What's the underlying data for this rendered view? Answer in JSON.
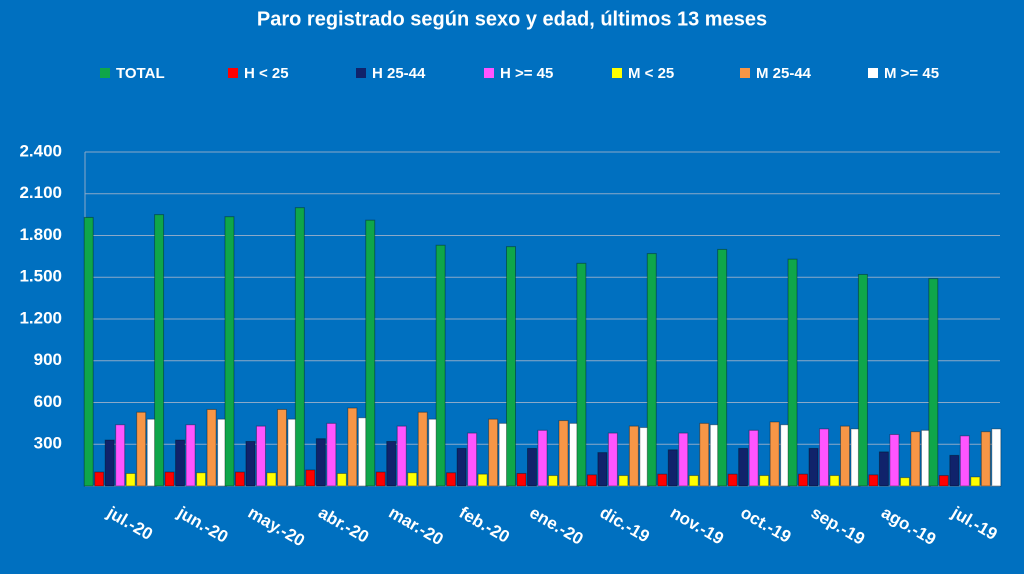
{
  "chart_data": {
    "type": "bar",
    "title": "Paro registrado según sexo y edad, últimos 13 meses",
    "categories": [
      "jul.-20",
      "jun.-20",
      "may.-20",
      "abr.-20",
      "mar.-20",
      "feb.-20",
      "ene.-20",
      "dic.-19",
      "nov.-19",
      "oct.-19",
      "sep.-19",
      "ago.-19",
      "jul.-19"
    ],
    "series": [
      {
        "name": "TOTAL",
        "color": "#0fa64a",
        "values": [
          1930,
          1950,
          1935,
          2000,
          1910,
          1730,
          1720,
          1600,
          1670,
          1700,
          1630,
          1520,
          1490
        ]
      },
      {
        "name": "H < 25",
        "color": "#ff0000",
        "values": [
          100,
          100,
          100,
          115,
          100,
          95,
          90,
          80,
          85,
          85,
          85,
          80,
          75
        ]
      },
      {
        "name": "H 25-44",
        "color": "#10236b",
        "values": [
          330,
          330,
          320,
          340,
          320,
          270,
          270,
          240,
          260,
          270,
          270,
          245,
          220
        ]
      },
      {
        "name": "H >= 45",
        "color": "#ff55ff",
        "values": [
          440,
          440,
          430,
          450,
          430,
          380,
          400,
          380,
          380,
          400,
          410,
          370,
          360
        ]
      },
      {
        "name": "M < 25",
        "color": "#ffff00",
        "values": [
          90,
          95,
          95,
          90,
          95,
          85,
          75,
          75,
          75,
          75,
          75,
          60,
          65
        ]
      },
      {
        "name": "M 25-44",
        "color": "#f79646",
        "values": [
          530,
          550,
          550,
          560,
          530,
          480,
          470,
          430,
          450,
          460,
          430,
          390,
          390
        ]
      },
      {
        "name": "M >= 45",
        "color": "#ffffff",
        "values": [
          480,
          480,
          480,
          490,
          480,
          450,
          450,
          420,
          440,
          440,
          410,
          400,
          410
        ]
      }
    ],
    "ylim": [
      0,
      2400
    ],
    "yticks": [
      300,
      600,
      900,
      {
        "value": 1200,
        "label": "1.200"
      },
      {
        "value": 1500,
        "label": "1.500"
      },
      {
        "value": 1800,
        "label": "1.800"
      },
      {
        "value": 2100,
        "label": "2.100"
      },
      {
        "value": 2400,
        "label": "2.400"
      }
    ],
    "grid": true,
    "legend": "top"
  }
}
